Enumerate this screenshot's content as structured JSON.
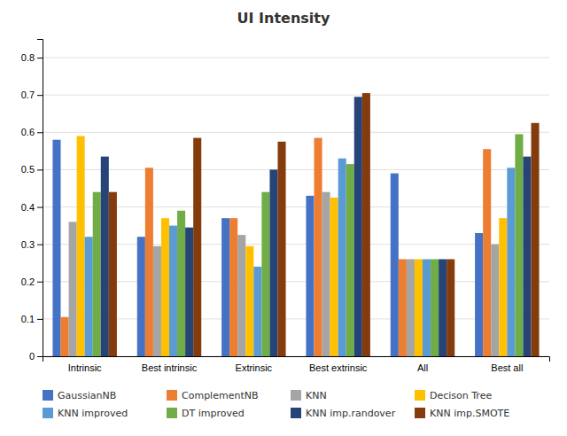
{
  "chart_data": {
    "type": "bar",
    "title": "UI Intensity",
    "categories": [
      "Intrinsic",
      "Best intrinsic",
      "Extrinsic",
      "Best extrinsic",
      "All",
      "Best all"
    ],
    "series": [
      {
        "name": "GaussianNB",
        "color": "#4472C4",
        "values": [
          0.58,
          0.32,
          0.37,
          0.43,
          0.49,
          0.33
        ]
      },
      {
        "name": "ComplementNB",
        "color": "#ED7D31",
        "values": [
          0.105,
          0.505,
          0.37,
          0.585,
          0.26,
          0.555
        ]
      },
      {
        "name": "KNN",
        "color": "#A5A5A5",
        "values": [
          0.36,
          0.295,
          0.325,
          0.44,
          0.26,
          0.3
        ]
      },
      {
        "name": "Decison Tree",
        "color": "#FFC000",
        "values": [
          0.59,
          0.37,
          0.295,
          0.425,
          0.26,
          0.37
        ]
      },
      {
        "name": "KNN improved",
        "color": "#5B9BD5",
        "values": [
          0.32,
          0.35,
          0.24,
          0.53,
          0.26,
          0.505
        ]
      },
      {
        "name": "DT improved",
        "color": "#70AD47",
        "values": [
          0.44,
          0.39,
          0.44,
          0.515,
          0.26,
          0.595
        ]
      },
      {
        "name": "KNN imp.randover",
        "color": "#264478",
        "values": [
          0.535,
          0.345,
          0.5,
          0.695,
          0.26,
          0.535
        ]
      },
      {
        "name": "KNN imp.SMOTE",
        "color": "#843C0C",
        "values": [
          0.44,
          0.585,
          0.575,
          0.705,
          0.26,
          0.625
        ]
      }
    ],
    "ylim": [
      0,
      0.85
    ],
    "yticks": [
      0,
      0.1,
      0.2,
      0.3,
      0.4,
      0.5,
      0.6,
      0.7,
      0.8
    ],
    "grid": true,
    "legend": "bottom"
  }
}
